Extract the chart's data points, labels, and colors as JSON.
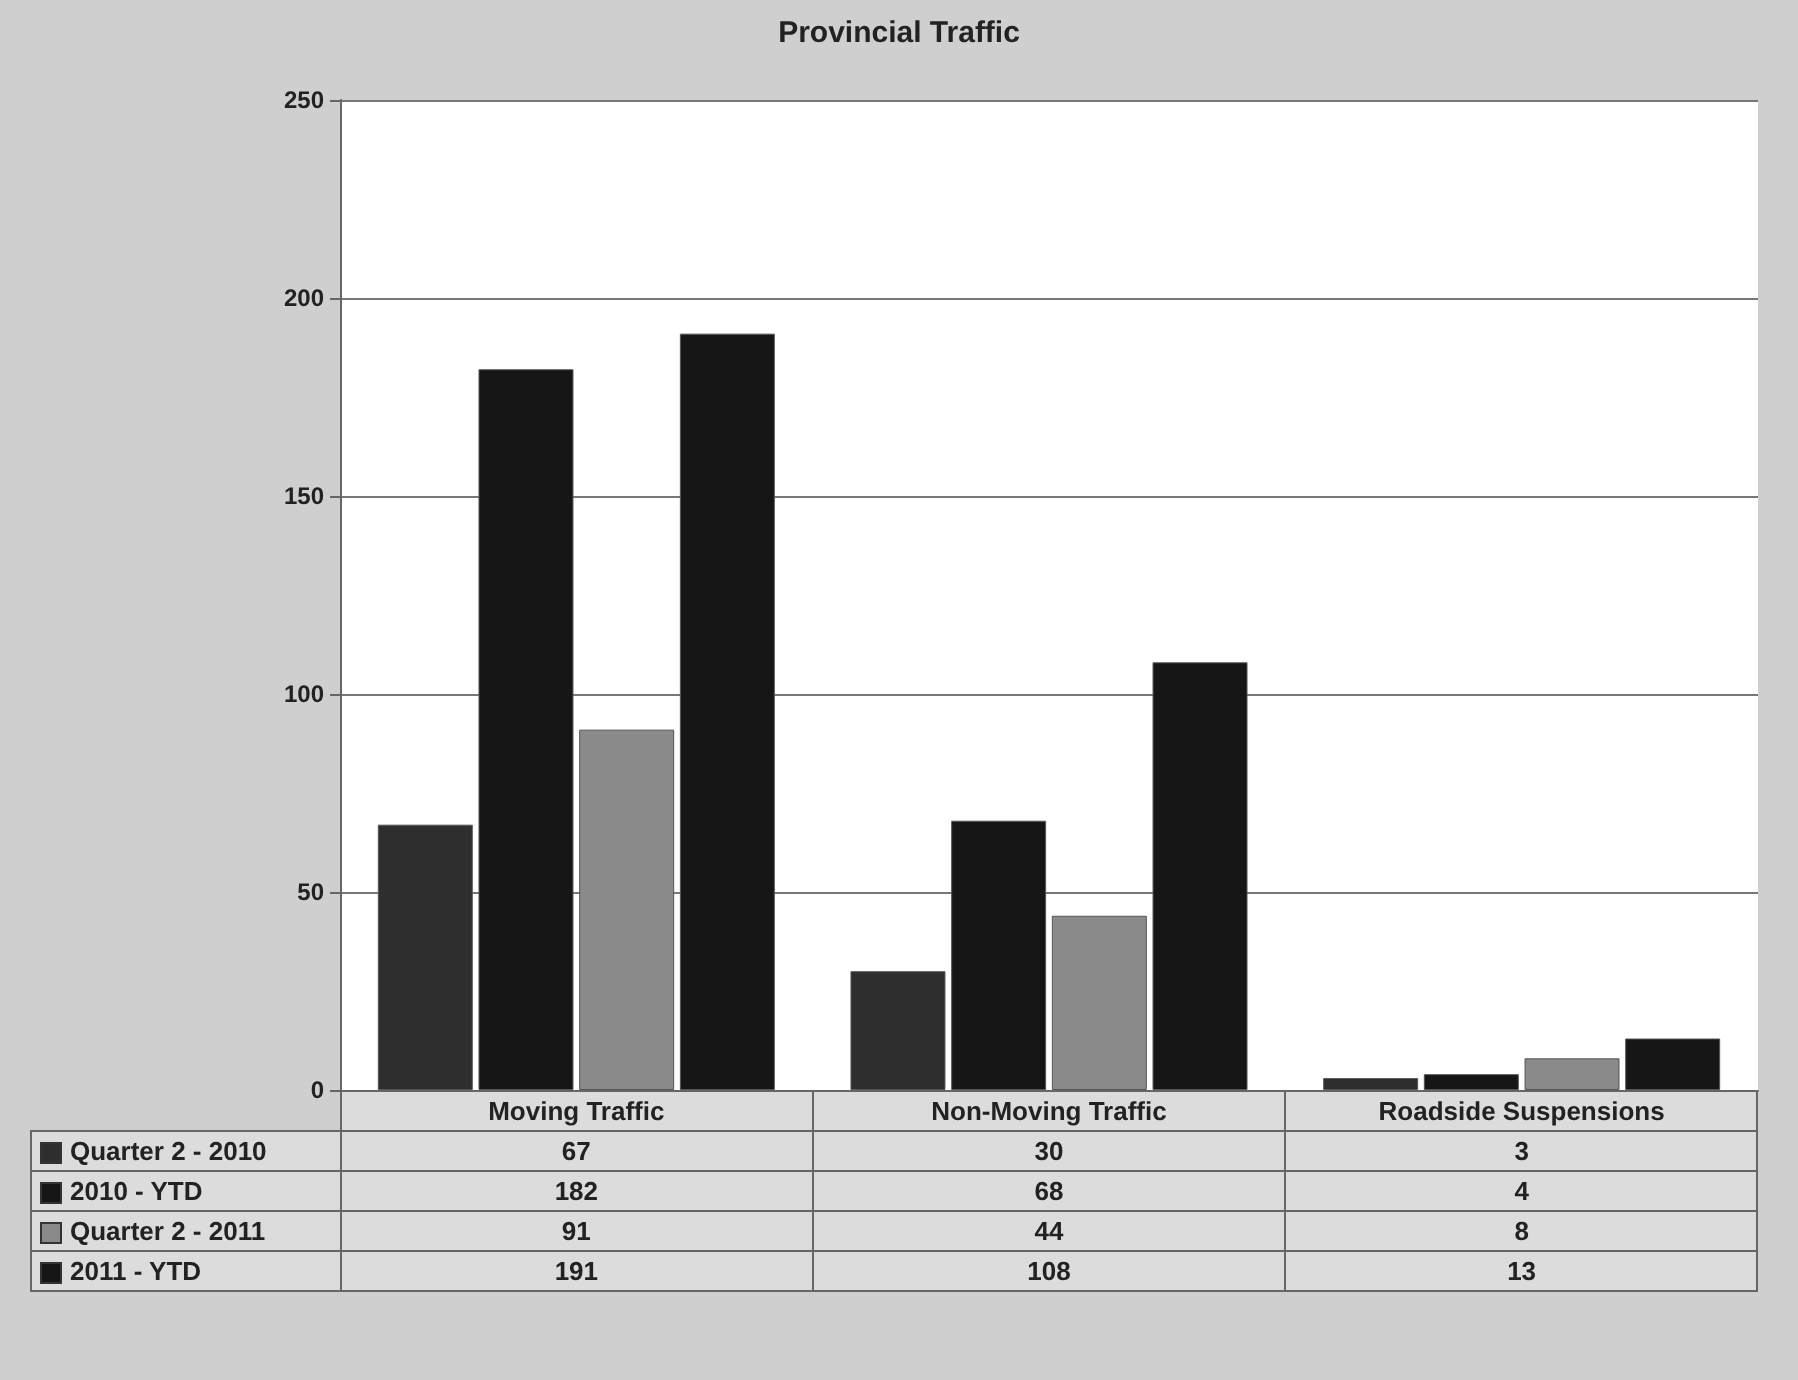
{
  "chart_data": {
    "type": "bar",
    "title": "Provincial Traffic",
    "categories": [
      "Moving Traffic",
      "Non-Moving Traffic",
      "Roadside Suspensions"
    ],
    "series": [
      {
        "name": "Quarter 2 - 2010",
        "color": "#2e2e2e",
        "values": [
          67,
          30,
          3
        ]
      },
      {
        "name": "2010 - YTD",
        "color": "#161616",
        "values": [
          182,
          68,
          4
        ]
      },
      {
        "name": "Quarter 2 - 2011",
        "color": "#8a8a8a",
        "values": [
          91,
          44,
          8
        ]
      },
      {
        "name": "2011 - YTD",
        "color": "#161616",
        "values": [
          191,
          108,
          13
        ]
      }
    ],
    "ylim": [
      0,
      250
    ],
    "yticks": [
      0,
      50,
      100,
      150,
      200,
      250
    ],
    "grid": "y",
    "legend": "bottom",
    "data_labels": true
  }
}
